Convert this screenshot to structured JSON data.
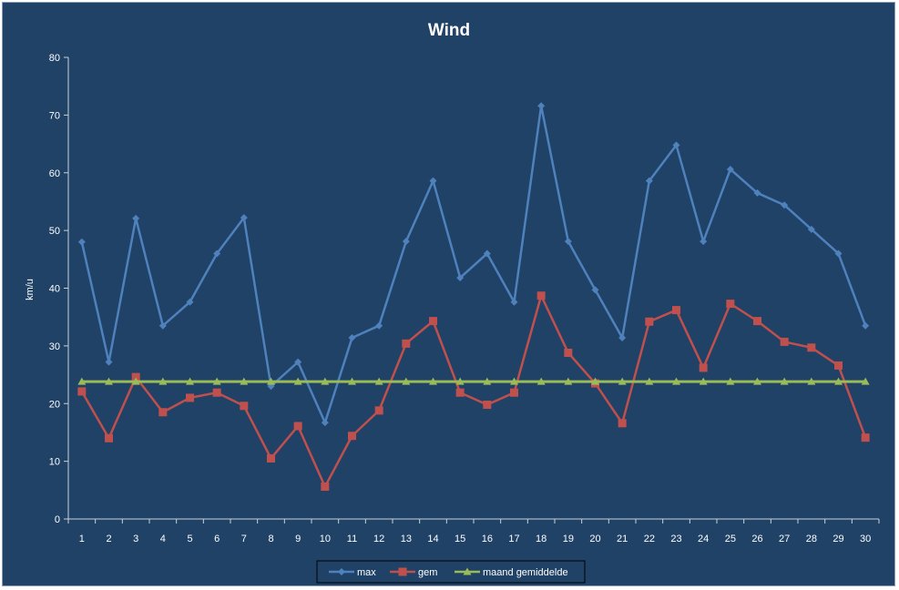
{
  "chart_data": {
    "type": "line",
    "title": "Wind",
    "xlabel": "",
    "ylabel": "km/u",
    "ylim": [
      0,
      80
    ],
    "yticks": [
      0,
      10,
      20,
      30,
      40,
      50,
      60,
      70,
      80
    ],
    "categories": [
      "1",
      "2",
      "3",
      "4",
      "5",
      "6",
      "7",
      "8",
      "9",
      "10",
      "11",
      "12",
      "13",
      "14",
      "15",
      "16",
      "17",
      "18",
      "19",
      "20",
      "21",
      "22",
      "23",
      "24",
      "25",
      "26",
      "27",
      "28",
      "29",
      "30"
    ],
    "grid": false,
    "legend_position": "bottom",
    "series": [
      {
        "name": "max",
        "color": "#4f81bd",
        "marker": "diamond",
        "values": [
          48.0,
          27.2,
          52.1,
          33.5,
          37.6,
          46.0,
          52.2,
          23.0,
          27.2,
          16.7,
          31.4,
          33.5,
          48.1,
          58.6,
          41.8,
          46.0,
          37.6,
          71.6,
          48.1,
          39.7,
          31.4,
          58.6,
          64.8,
          48.1,
          60.6,
          56.5,
          54.4,
          50.2,
          46.0,
          33.5
        ]
      },
      {
        "name": "gem",
        "color": "#c0504d",
        "marker": "square",
        "values": [
          22.1,
          14.0,
          24.6,
          18.5,
          21.0,
          21.9,
          19.6,
          10.5,
          16.1,
          5.6,
          14.4,
          18.8,
          30.4,
          34.3,
          21.9,
          19.8,
          21.9,
          38.7,
          28.8,
          23.5,
          16.6,
          34.2,
          36.2,
          26.2,
          37.3,
          34.3,
          30.7,
          29.7,
          26.6,
          14.1
        ]
      },
      {
        "name": "maand gemiddelde",
        "color": "#9bbb59",
        "marker": "triangle",
        "values": [
          23.8,
          23.8,
          23.8,
          23.8,
          23.8,
          23.8,
          23.8,
          23.8,
          23.8,
          23.8,
          23.8,
          23.8,
          23.8,
          23.8,
          23.8,
          23.8,
          23.8,
          23.8,
          23.8,
          23.8,
          23.8,
          23.8,
          23.8,
          23.8,
          23.8,
          23.8,
          23.8,
          23.8,
          23.8,
          23.8
        ]
      }
    ]
  }
}
